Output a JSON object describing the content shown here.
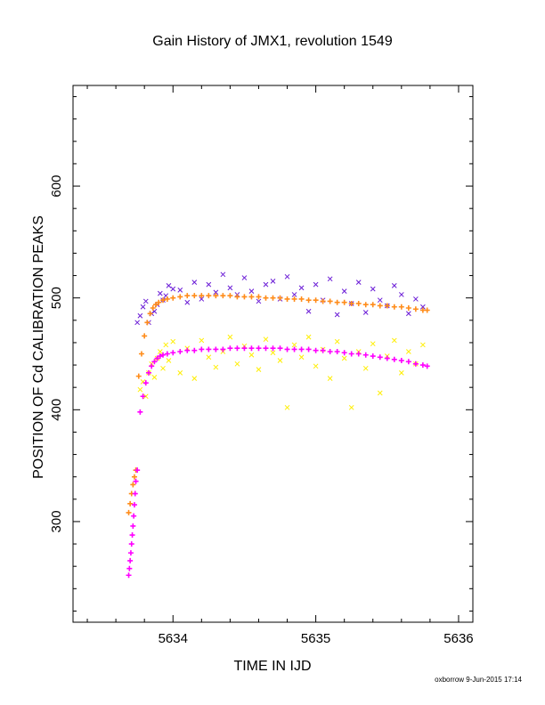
{
  "chart_data": {
    "type": "scatter",
    "title": "Gain History of JMX1, revolution 1549",
    "xlabel": "TIME IN IJD",
    "ylabel": "POSITION OF Cd CALIBRATION PEAKS",
    "xlim": [
      5633.3,
      5636.1
    ],
    "ylim": [
      210,
      690
    ],
    "x_ticks": [
      5634,
      5635,
      5636
    ],
    "y_ticks": [
      300,
      400,
      500,
      600
    ],
    "grid": false,
    "footer": "oxborrow  9-Jun-2015 17:14",
    "series": [
      {
        "marker": "cross",
        "color": "#6a1bd6",
        "x": [
          5633.75,
          5633.77,
          5633.79,
          5633.81,
          5633.83,
          5633.85,
          5633.87,
          5633.89,
          5633.91,
          5633.93,
          5633.95,
          5633.97,
          5634.0,
          5634.05,
          5634.1,
          5634.15,
          5634.2,
          5634.25,
          5634.3,
          5634.35,
          5634.4,
          5634.45,
          5634.5,
          5634.55,
          5634.6,
          5634.65,
          5634.7,
          5634.75,
          5634.8,
          5634.85,
          5634.9,
          5634.95,
          5635.0,
          5635.05,
          5635.1,
          5635.15,
          5635.2,
          5635.25,
          5635.3,
          5635.35,
          5635.4,
          5635.45,
          5635.5,
          5635.55,
          5635.6,
          5635.65,
          5635.7,
          5635.75
        ],
        "values": [
          478,
          484,
          492,
          497,
          478,
          486,
          488,
          494,
          504,
          498,
          502,
          511,
          508,
          507,
          496,
          514,
          499,
          512,
          505,
          521,
          509,
          503,
          518,
          506,
          497,
          512,
          515,
          499,
          519,
          503,
          509,
          488,
          512,
          498,
          517,
          485,
          506,
          495,
          514,
          487,
          508,
          498,
          493,
          511,
          503,
          486,
          499,
          492
        ]
      },
      {
        "marker": "cross",
        "color": "#ffee00",
        "x": [
          5633.77,
          5633.79,
          5633.81,
          5633.83,
          5633.85,
          5633.87,
          5633.89,
          5633.91,
          5633.93,
          5633.95,
          5633.97,
          5634.0,
          5634.05,
          5634.1,
          5634.15,
          5634.2,
          5634.25,
          5634.3,
          5634.35,
          5634.4,
          5634.45,
          5634.5,
          5634.55,
          5634.6,
          5634.65,
          5634.7,
          5634.75,
          5634.8,
          5634.85,
          5634.9,
          5634.95,
          5635.0,
          5635.05,
          5635.1,
          5635.15,
          5635.2,
          5635.25,
          5635.3,
          5635.35,
          5635.4,
          5635.45,
          5635.5,
          5635.55,
          5635.6,
          5635.65,
          5635.7,
          5635.75
        ],
        "values": [
          418,
          425,
          412,
          433,
          441,
          429,
          446,
          452,
          437,
          458,
          444,
          461,
          433,
          455,
          428,
          462,
          447,
          438,
          452,
          465,
          441,
          457,
          449,
          436,
          463,
          451,
          444,
          402,
          458,
          447,
          465,
          439,
          454,
          428,
          461,
          446,
          402,
          452,
          437,
          459,
          415,
          448,
          462,
          433,
          452,
          441,
          458
        ]
      },
      {
        "marker": "plus",
        "color": "#ff8c1a",
        "x": [
          5633.69,
          5633.7,
          5633.71,
          5633.72,
          5633.73,
          5633.74,
          5633.76,
          5633.78,
          5633.8,
          5633.82,
          5633.84,
          5633.86,
          5633.88,
          5633.9,
          5633.93,
          5633.96,
          5634.0,
          5634.05,
          5634.1,
          5634.15,
          5634.2,
          5634.25,
          5634.3,
          5634.35,
          5634.4,
          5634.45,
          5634.5,
          5634.55,
          5634.6,
          5634.65,
          5634.7,
          5634.75,
          5634.8,
          5634.85,
          5634.9,
          5634.95,
          5635.0,
          5635.05,
          5635.1,
          5635.15,
          5635.2,
          5635.25,
          5635.3,
          5635.35,
          5635.4,
          5635.45,
          5635.5,
          5635.55,
          5635.6,
          5635.65,
          5635.7,
          5635.75,
          5635.78
        ],
        "values": [
          308,
          316,
          325,
          333,
          340,
          346,
          430,
          450,
          466,
          478,
          486,
          491,
          494,
          496,
          498,
          499,
          500,
          501,
          502,
          502,
          502,
          502,
          502,
          502,
          502,
          501,
          501,
          501,
          501,
          500,
          500,
          500,
          499,
          499,
          499,
          498,
          498,
          497,
          497,
          496,
          496,
          495,
          495,
          494,
          494,
          493,
          493,
          492,
          492,
          491,
          490,
          489,
          489
        ]
      },
      {
        "marker": "plus",
        "color": "#ff00ff",
        "x": [
          5633.69,
          5633.695,
          5633.7,
          5633.705,
          5633.71,
          5633.715,
          5633.72,
          5633.725,
          5633.73,
          5633.735,
          5633.74,
          5633.75,
          5633.77,
          5633.79,
          5633.81,
          5633.83,
          5633.85,
          5633.87,
          5633.89,
          5633.91,
          5633.93,
          5633.96,
          5634.0,
          5634.05,
          5634.1,
          5634.15,
          5634.2,
          5634.25,
          5634.3,
          5634.35,
          5634.4,
          5634.45,
          5634.5,
          5634.55,
          5634.6,
          5634.65,
          5634.7,
          5634.75,
          5634.8,
          5634.85,
          5634.9,
          5634.95,
          5635.0,
          5635.05,
          5635.1,
          5635.15,
          5635.2,
          5635.25,
          5635.3,
          5635.35,
          5635.4,
          5635.45,
          5635.5,
          5635.55,
          5635.6,
          5635.65,
          5635.7,
          5635.75,
          5635.78
        ],
        "values": [
          252,
          258,
          265,
          272,
          280,
          288,
          296,
          305,
          315,
          325,
          336,
          346,
          398,
          412,
          424,
          433,
          439,
          443,
          446,
          448,
          449,
          450,
          451,
          452,
          453,
          453,
          454,
          454,
          454,
          454,
          455,
          455,
          455,
          455,
          455,
          455,
          455,
          455,
          454,
          454,
          454,
          454,
          453,
          453,
          452,
          452,
          451,
          450,
          450,
          449,
          448,
          447,
          446,
          445,
          444,
          443,
          441,
          440,
          439
        ]
      }
    ]
  }
}
